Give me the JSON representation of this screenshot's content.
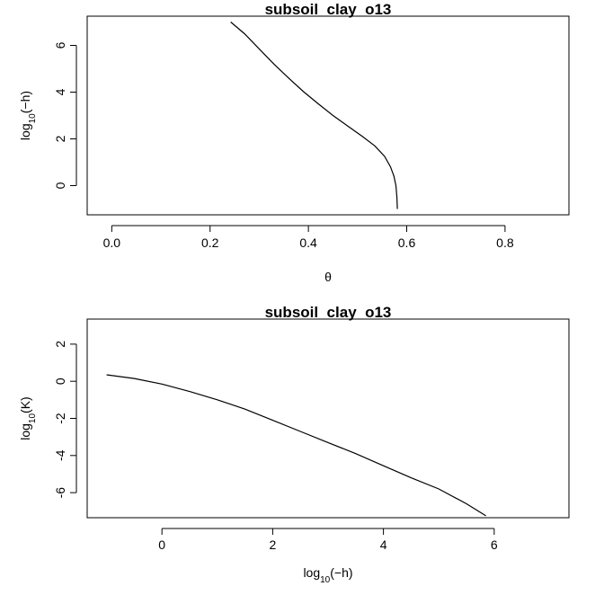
{
  "chart_data": [
    {
      "type": "line",
      "title": "subsoil_clay_o13",
      "xlabel": "θ",
      "ylabel": {
        "prefix": "log",
        "subscript": "10",
        "suffix": "(−h)"
      },
      "xlim": [
        -0.05,
        0.93
      ],
      "ylim": [
        -1.25,
        7.25
      ],
      "xticks": [
        0.0,
        0.2,
        0.4,
        0.6,
        0.8
      ],
      "xtick_labels": [
        "0.0",
        "0.2",
        "0.4",
        "0.6",
        "0.8"
      ],
      "yticks": [
        0,
        2,
        4,
        6
      ],
      "ytick_labels": [
        "0",
        "2",
        "4",
        "6"
      ],
      "series": [
        {
          "x": [
            0.242,
            0.27,
            0.3,
            0.33,
            0.36,
            0.39,
            0.42,
            0.45,
            0.48,
            0.51,
            0.535,
            0.555,
            0.567,
            0.574,
            0.578,
            0.58,
            0.581
          ],
          "y": [
            7.0,
            6.5,
            5.85,
            5.2,
            4.6,
            4.02,
            3.5,
            3.0,
            2.55,
            2.1,
            1.7,
            1.25,
            0.8,
            0.4,
            0.0,
            -0.5,
            -1.0
          ]
        }
      ]
    },
    {
      "type": "line",
      "title": "subsoil_clay_o13",
      "xlabel": {
        "prefix": "log",
        "subscript": "10",
        "suffix": "(−h)"
      },
      "ylabel": {
        "prefix": "log",
        "subscript": "10",
        "suffix": "(K)"
      },
      "xlim": [
        -1.35,
        7.35
      ],
      "ylim": [
        -7.35,
        3.35
      ],
      "xticks": [
        0,
        2,
        4,
        6
      ],
      "xtick_labels": [
        "0",
        "2",
        "4",
        "6"
      ],
      "yticks": [
        2,
        0,
        -2,
        -4,
        -6
      ],
      "ytick_labels": [
        "2",
        "0",
        "-2",
        "-4",
        "-6"
      ],
      "series": [
        {
          "x": [
            -1.0,
            -0.5,
            0.0,
            0.5,
            1.0,
            1.5,
            2.0,
            2.5,
            3.0,
            3.5,
            4.0,
            4.5,
            5.0,
            5.5,
            5.85
          ],
          "y": [
            0.35,
            0.15,
            -0.15,
            -0.55,
            -1.0,
            -1.5,
            -2.1,
            -2.7,
            -3.3,
            -3.9,
            -4.55,
            -5.2,
            -5.8,
            -6.6,
            -7.25
          ]
        }
      ]
    }
  ]
}
